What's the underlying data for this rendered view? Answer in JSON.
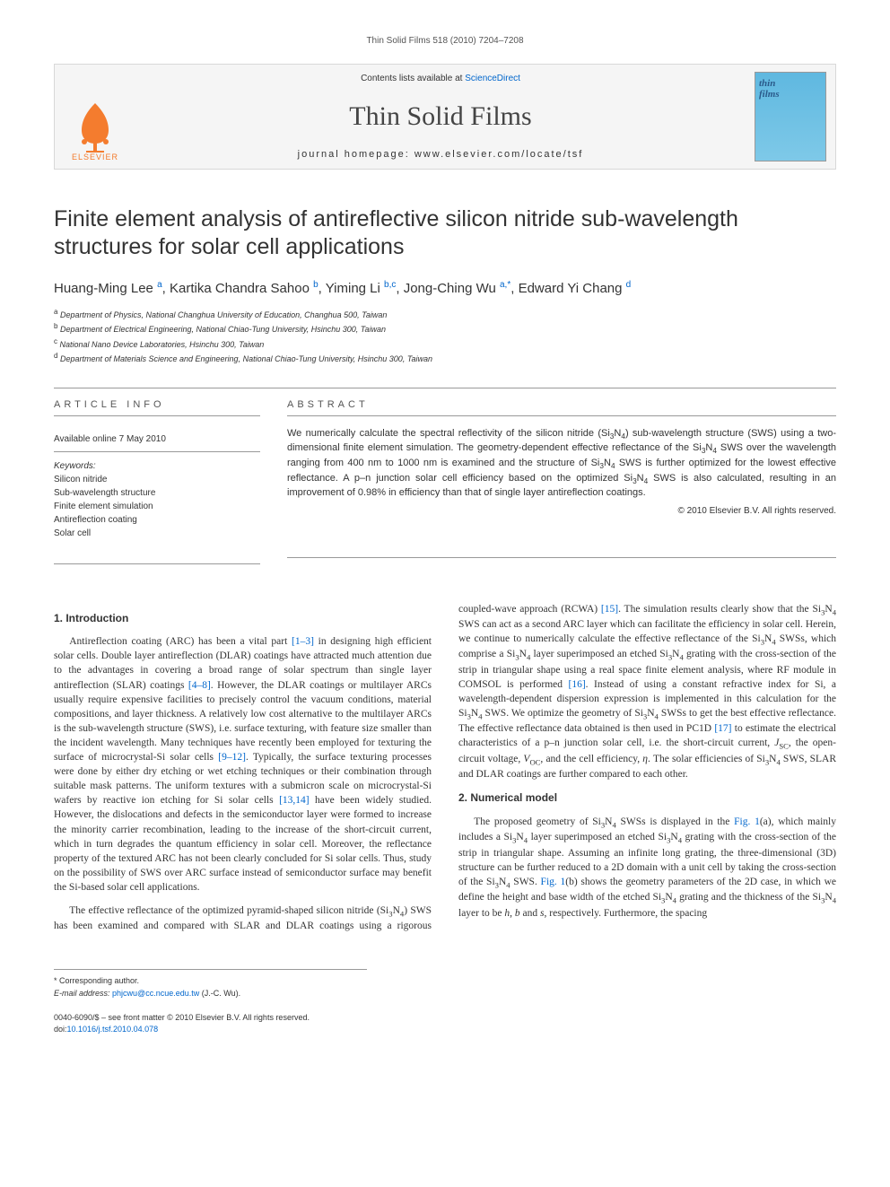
{
  "running_head": "Thin Solid Films 518 (2010) 7204–7208",
  "header": {
    "contents_prefix": "Contents lists available at ",
    "contents_link": "ScienceDirect",
    "journal_name": "Thin Solid Films",
    "homepage_prefix": "journal homepage: ",
    "homepage_url": "www.elsevier.com/locate/tsf",
    "publisher_label": "ELSEVIER",
    "cover_label_1": "thin",
    "cover_label_2": "films"
  },
  "article": {
    "title": "Finite element analysis of antireflective silicon nitride sub-wavelength structures for solar cell applications",
    "authors_html": "Huang-Ming Lee <span class='sup'>a</span>, Kartika Chandra Sahoo <span class='sup'>b</span>, Yiming Li <span class='sup'>b,c</span>, Jong-Ching Wu <span class='sup'>a,</span><span class='sup star'>*</span>, Edward Yi Chang <span class='sup'>d</span>",
    "affiliations": [
      {
        "sup": "a",
        "text": "Department of Physics, National Changhua University of Education, Changhua 500, Taiwan"
      },
      {
        "sup": "b",
        "text": "Department of Electrical Engineering, National Chiao-Tung University, Hsinchu 300, Taiwan"
      },
      {
        "sup": "c",
        "text": "National Nano Device Laboratories, Hsinchu 300, Taiwan"
      },
      {
        "sup": "d",
        "text": "Department of Materials Science and Engineering, National Chiao-Tung University, Hsinchu 300, Taiwan"
      }
    ]
  },
  "info": {
    "heading": "ARTICLE INFO",
    "available": "Available online 7 May 2010",
    "keywords_label": "Keywords:",
    "keywords": [
      "Silicon nitride",
      "Sub-wavelength structure",
      "Finite element simulation",
      "Antireflection coating",
      "Solar cell"
    ]
  },
  "abstract": {
    "heading": "ABSTRACT",
    "text_html": "We numerically calculate the spectral reflectivity of the silicon nitride (Si<sub>3</sub>N<sub>4</sub>) sub-wavelength structure (SWS) using a two-dimensional finite element simulation. The geometry-dependent effective reflectance of the Si<sub>3</sub>N<sub>4</sub> SWS over the wavelength ranging from 400 nm to 1000 nm is examined and the structure of Si<sub>3</sub>N<sub>4</sub> SWS is further optimized for the lowest effective reflectance. A p–n junction solar cell efficiency based on the optimized Si<sub>3</sub>N<sub>4</sub> SWS is also calculated, resulting in an improvement of 0.98% in efficiency than that of single layer antireflection coatings.",
    "copyright": "© 2010 Elsevier B.V. All rights reserved."
  },
  "sections": {
    "intro_heading": "1. Introduction",
    "intro_p1_html": "Antireflection coating (ARC) has been a vital part <span class='ref-link'>[1–3]</span> in designing high efficient solar cells. Double layer antireflection (DLAR) coatings have attracted much attention due to the advantages in covering a broad range of solar spectrum than single layer antireflection (SLAR) coatings <span class='ref-link'>[4–8]</span>. However, the DLAR coatings or multilayer ARCs usually require expensive facilities to precisely control the vacuum conditions, material compositions, and layer thickness. A relatively low cost alternative to the multilayer ARCs is the sub-wavelength structure (SWS), i.e. surface texturing, with feature size smaller than the incident wavelength. Many techniques have recently been employed for texturing the surface of microcrystal-Si solar cells <span class='ref-link'>[9–12]</span>. Typically, the surface texturing processes were done by either dry etching or wet etching techniques or their combination through suitable mask patterns. The uniform textures with a submicron scale on microcrystal-Si wafers by reactive ion etching for Si solar cells <span class='ref-link'>[13,14]</span> have been widely studied. However, the dislocations and defects in the semiconductor layer were formed to increase the minority carrier recombination, leading to the increase of the short-circuit current, which in turn degrades the quantum efficiency in solar cell. Moreover, the reflectance property of the textured ARC has not been clearly concluded for Si solar cells. Thus, study on the possibility of SWS over ARC surface instead of semiconductor surface may benefit the Si-based solar cell applications.",
    "intro_p2_html": "The effective reflectance of the optimized pyramid-shaped silicon nitride (Si<sub>3</sub>N<sub>4</sub>) SWS has been examined and compared with SLAR and DLAR coatings using a rigorous coupled-wave approach (RCWA) <span class='ref-link'>[15]</span>. The simulation results clearly show that the Si<sub>3</sub>N<sub>4</sub> SWS can act as a second ARC layer which can facilitate the efficiency in solar cell. Herein, we continue to numerically calculate the effective reflectance of the Si<sub>3</sub>N<sub>4</sub> SWSs, which comprise a Si<sub>3</sub>N<sub>4</sub> layer superimposed an etched Si<sub>3</sub>N<sub>4</sub> grating with the cross-section of the strip in triangular shape using a real space finite element analysis, where RF module in COMSOL is performed <span class='ref-link'>[16]</span>. Instead of using a constant refractive index for Si, a wavelength-dependent dispersion expression is implemented in this calculation for the Si<sub>3</sub>N<sub>4</sub> SWS. We optimize the geometry of Si<sub>3</sub>N<sub>4</sub> SWSs to get the best effective reflectance. The effective reflectance data obtained is then used in PC1D <span class='ref-link'>[17]</span> to estimate the electrical characteristics of a p–n junction solar cell, i.e. the short-circuit current, <i>J</i><sub>SC</sub>, the open-circuit voltage, <i>V</i><sub>OC</sub>, and the cell efficiency, <i>η</i>. The solar efficiencies of Si<sub>3</sub>N<sub>4</sub> SWS, SLAR and DLAR coatings are further compared to each other.",
    "numerical_heading": "2. Numerical model",
    "numerical_p1_html": "The proposed geometry of Si<sub>3</sub>N<sub>4</sub> SWSs is displayed in the <span class='ref-link'>Fig. 1</span>(a), which mainly includes a Si<sub>3</sub>N<sub>4</sub> layer superimposed an etched Si<sub>3</sub>N<sub>4</sub> grating with the cross-section of the strip in triangular shape. Assuming an infinite long grating, the three-dimensional (3D) structure can be further reduced to a 2D domain with a unit cell by taking the cross-section of the Si<sub>3</sub>N<sub>4</sub> SWS. <span class='ref-link'>Fig. 1</span>(b) shows the geometry parameters of the 2D case, in which we define the height and base width of the etched Si<sub>3</sub>N<sub>4</sub> grating and the thickness of the Si<sub>3</sub>N<sub>4</sub> layer to be <i>h</i>, <i>b</i> and <i>s</i>, respectively. Furthermore, the spacing"
  },
  "footnote": {
    "corr_label": "* Corresponding author.",
    "email_label": "E-mail address:",
    "email": "phjcwu@cc.ncue.edu.tw",
    "email_name": "(J.-C. Wu)."
  },
  "bottom": {
    "front_matter": "0040-6090/$ – see front matter © 2010 Elsevier B.V. All rights reserved.",
    "doi_prefix": "doi:",
    "doi": "10.1016/j.tsf.2010.04.078"
  },
  "colors": {
    "link": "#0066cc",
    "elsevier": "#f47c2e",
    "cover_bg_top": "#5fb8e0",
    "cover_bg_bottom": "#7ec9e8",
    "header_bg": "#f5f5f5",
    "border": "#d8d8d8"
  }
}
